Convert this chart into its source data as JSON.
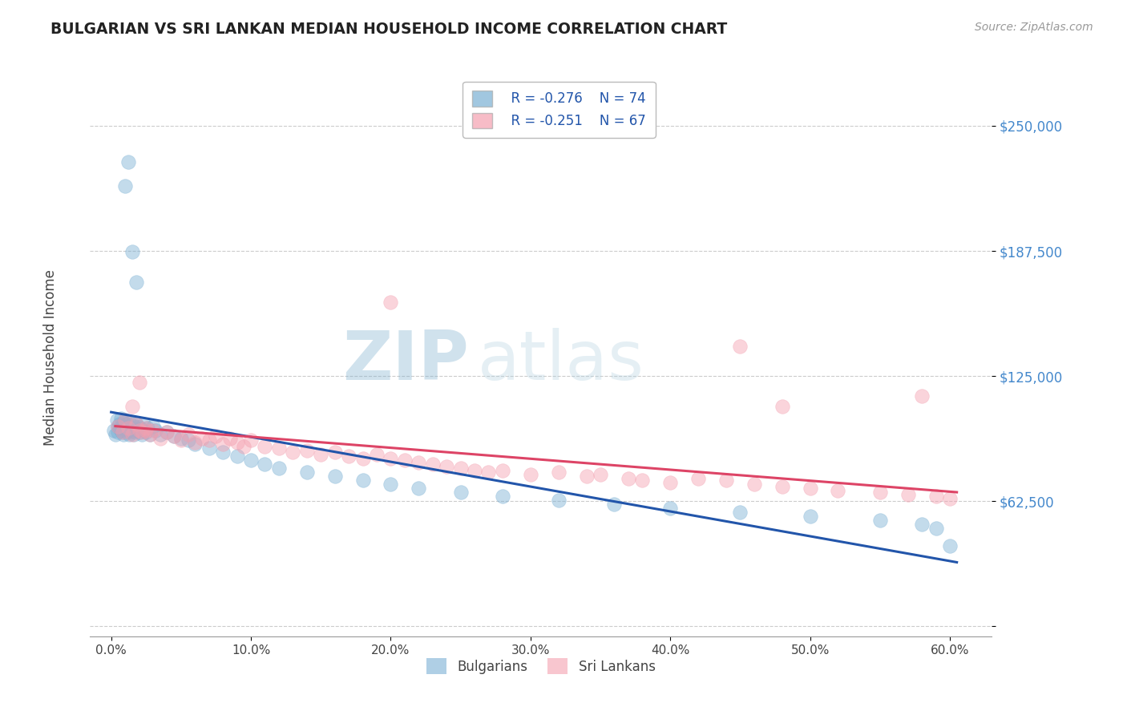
{
  "title": "BULGARIAN VS SRI LANKAN MEDIAN HOUSEHOLD INCOME CORRELATION CHART",
  "source": "Source: ZipAtlas.com",
  "xlabel_vals": [
    0.0,
    10.0,
    20.0,
    30.0,
    40.0,
    50.0,
    60.0
  ],
  "ylabel_ticks": [
    0,
    62500,
    125000,
    187500,
    250000
  ],
  "ylabel_labels": [
    "",
    "$62,500",
    "$125,000",
    "$187,500",
    "$250,000"
  ],
  "ylim": [
    -5000,
    270000
  ],
  "xlim": [
    -1.5,
    63.0
  ],
  "bg_color": "#ffffff",
  "grid_color": "#cccccc",
  "watermark_zip": "ZIP",
  "watermark_atlas": "atlas",
  "watermark_color": "#b8cfe0",
  "legend_r1": "R = -0.276",
  "legend_n1": "N = 74",
  "legend_r2": "R = -0.251",
  "legend_n2": "N = 67",
  "blue_color": "#7ab0d4",
  "pink_color": "#f4a0b0",
  "blue_line_color": "#2255aa",
  "pink_line_color": "#dd4466",
  "title_color": "#222222",
  "axis_label_color": "#444444",
  "ytick_color": "#4488cc",
  "xtick_color": "#444444",
  "bulgarians_x": [
    0.2,
    0.3,
    0.4,
    0.5,
    0.5,
    0.6,
    0.6,
    0.7,
    0.7,
    0.8,
    0.8,
    0.9,
    0.9,
    1.0,
    1.0,
    1.1,
    1.1,
    1.2,
    1.2,
    1.3,
    1.3,
    1.4,
    1.4,
    1.5,
    1.5,
    1.6,
    1.6,
    1.7,
    1.7,
    1.8,
    1.8,
    1.9,
    2.0,
    2.1,
    2.2,
    2.3,
    2.4,
    2.5,
    2.6,
    2.8,
    3.0,
    3.2,
    3.5,
    4.0,
    4.5,
    5.0,
    5.5,
    6.0,
    7.0,
    8.0,
    9.0,
    10.0,
    11.0,
    12.0,
    14.0,
    16.0,
    18.0,
    20.0,
    22.0,
    25.0,
    28.0,
    32.0,
    36.0,
    40.0,
    45.0,
    50.0,
    55.0,
    58.0,
    59.0,
    60.0,
    1.0,
    1.2,
    1.5,
    1.8
  ],
  "bulgarians_y": [
    98000,
    96000,
    103000,
    100000,
    97000,
    99000,
    101000,
    98000,
    104000,
    97000,
    100000,
    102000,
    96000,
    99000,
    103000,
    97000,
    101000,
    98000,
    100000,
    96000,
    102000,
    99000,
    97000,
    101000,
    98000,
    100000,
    96000,
    99000,
    97000,
    101000,
    98000,
    100000,
    97000,
    99000,
    96000,
    101000,
    98000,
    97000,
    99000,
    96000,
    100000,
    98000,
    96000,
    97000,
    95000,
    94000,
    93000,
    91000,
    89000,
    87000,
    85000,
    83000,
    81000,
    79000,
    77000,
    75000,
    73000,
    71000,
    69000,
    67000,
    65000,
    63000,
    61000,
    59000,
    57000,
    55000,
    53000,
    51000,
    49000,
    40000,
    220000,
    232000,
    187000,
    172000
  ],
  "srilankans_x": [
    0.5,
    0.8,
    1.0,
    1.2,
    1.5,
    1.8,
    2.0,
    2.2,
    2.5,
    2.8,
    3.0,
    3.5,
    4.0,
    4.5,
    5.0,
    5.5,
    6.0,
    6.5,
    7.0,
    7.5,
    8.0,
    8.5,
    9.0,
    9.5,
    10.0,
    11.0,
    12.0,
    13.0,
    14.0,
    15.0,
    16.0,
    17.0,
    18.0,
    19.0,
    20.0,
    21.0,
    22.0,
    23.0,
    24.0,
    25.0,
    26.0,
    27.0,
    28.0,
    30.0,
    32.0,
    34.0,
    35.0,
    37.0,
    38.0,
    40.0,
    42.0,
    44.0,
    46.0,
    48.0,
    50.0,
    52.0,
    55.0,
    57.0,
    59.0,
    60.0,
    1.5,
    2.0,
    2.5,
    20.0,
    45.0,
    48.0,
    58.0
  ],
  "srilankans_y": [
    100000,
    97000,
    103000,
    99000,
    96000,
    101000,
    98000,
    97000,
    99000,
    96000,
    98000,
    94000,
    97000,
    95000,
    93000,
    96000,
    92000,
    94000,
    93000,
    95000,
    91000,
    94000,
    92000,
    90000,
    93000,
    90000,
    89000,
    87000,
    88000,
    86000,
    87000,
    85000,
    84000,
    86000,
    84000,
    83000,
    82000,
    81000,
    80000,
    79000,
    78000,
    77000,
    78000,
    76000,
    77000,
    75000,
    76000,
    74000,
    73000,
    72000,
    74000,
    73000,
    71000,
    70000,
    69000,
    68000,
    67000,
    66000,
    65000,
    64000,
    110000,
    122000,
    98000,
    162000,
    140000,
    110000,
    115000
  ],
  "blue_trend_x": [
    0.0,
    60.5
  ],
  "blue_trend_y": [
    107000,
    32000
  ],
  "pink_trend_x": [
    0.3,
    60.5
  ],
  "pink_trend_y": [
    100000,
    67000
  ]
}
